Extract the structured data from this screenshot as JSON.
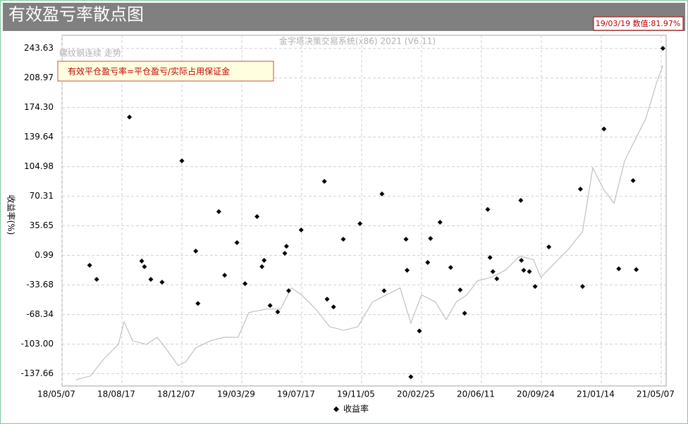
{
  "chart_data": {
    "type": "scatter",
    "title": "有效盈亏率散点图",
    "status_text": "19/03/19 数值:81.97%",
    "subtitle": "金字塔决策交易系统(x86) 2021 (V6.11)",
    "annotation": "有效平仓盈亏率=平仓盈亏/实际占用保证金",
    "ylabel": "收益率(%)",
    "grid": true,
    "xlim": [
      "18/05/07",
      "21/05/16"
    ],
    "xticks": [
      "18/05/07",
      "18/08/17",
      "18/12/07",
      "19/03/29",
      "19/07/17",
      "19/11/05",
      "20/02/25",
      "20/06/11",
      "20/09/24",
      "21/01/14",
      "21/05/07"
    ],
    "ylim": [
      -152,
      259
    ],
    "yticks": [
      243.63,
      208.97,
      {
        "value": 174.3,
        "label": "174.30"
      },
      139.64,
      104.98,
      70.31,
      35.65,
      0.99,
      -33.68,
      -68.34,
      {
        "value": -103,
        "label": "-103.00"
      },
      -137.66
    ],
    "series": [
      {
        "name": "收益率",
        "type": "scatter",
        "color": "#000000",
        "x": [
          "18/06/23",
          "18/07/05",
          "18/08/31",
          "18/09/23",
          "18/09/28",
          "18/10/10",
          "18/10/31",
          "18/12/07",
          "19/01/02",
          "19/01/06",
          "19/02/14",
          "19/02/25",
          "19/03/20",
          "19/04/04",
          "19/04/26",
          "19/05/05",
          "19/05/09",
          "19/05/20",
          "19/06/03",
          "19/06/16",
          "19/06/19",
          "19/06/23",
          "19/07/16",
          "19/08/28",
          "19/09/02",
          "19/09/14",
          "19/10/02",
          "19/11/02",
          "19/12/13",
          "19/12/17",
          "20/01/27",
          "20/01/29",
          "20/02/05",
          "20/02/21",
          "20/03/07",
          "20/03/12",
          "20/03/29",
          "20/04/17",
          "20/05/04",
          "20/05/12",
          "20/06/22",
          "20/06/26",
          "20/07/01",
          "20/07/08",
          "20/08/19",
          "20/08/20",
          "20/08/24",
          "20/09/03",
          "20/09/13",
          "20/10/08",
          "20/12/06",
          "20/12/10",
          "21/01/19",
          "21/02/16",
          "21/03/15",
          "21/03/21",
          "21/05/10"
        ],
        "values": [
          -10.6,
          -27.1,
          163.1,
          -5.6,
          -12.2,
          -27.1,
          -30.4,
          111.8,
          6.0,
          -55.3,
          52.3,
          -22.2,
          15.9,
          -32.1,
          46.5,
          -12.2,
          -4.8,
          -57.7,
          -65.2,
          3.5,
          11.7,
          -40.4,
          30.8,
          87.8,
          -50.3,
          -59.4,
          20.0,
          38.2,
          73.0,
          -40.4,
          20.0,
          -16.4,
          -141.3,
          -87.5,
          -7.3,
          20.8,
          39.9,
          -13.1,
          -39.5,
          -66.8,
          54.8,
          -1.5,
          -18.0,
          -26.3,
          65.5,
          -4.8,
          -16.4,
          -18.0,
          -35.4,
          10.9,
          78.7,
          -35.4,
          149.1,
          -14.7,
          88.7,
          -15.6,
          243.63
        ]
      },
      {
        "name": "螺纹钢连续 走势",
        "type": "line",
        "color": "#c0c0c0",
        "x": [
          "18/05/31",
          "18/06/24",
          "18/07/18",
          "18/08/11",
          "18/08/21",
          "18/09/06",
          "18/10/02",
          "18/10/22",
          "18/11/11",
          "18/11/30",
          "18/12/14",
          "19/01/02",
          "19/01/29",
          "19/02/24",
          "19/03/22",
          "19/04/11",
          "19/05/13",
          "19/06/08",
          "19/06/28",
          "19/07/17",
          "19/08/12",
          "19/09/07",
          "19/10/03",
          "19/10/29",
          "19/11/25",
          "19/12/21",
          "20/01/16",
          "20/02/05",
          "20/02/25",
          "20/03/21",
          "20/04/09",
          "20/04/27",
          "20/05/16",
          "20/06/04",
          "20/06/28",
          "20/07/23",
          "20/08/17",
          "20/09/10",
          "20/09/23",
          "20/10/19",
          "20/11/14",
          "20/12/10",
          "20/12/29",
          "21/01/18",
          "21/02/07",
          "21/02/27",
          "21/03/19",
          "21/04/08",
          "21/04/28",
          "21/05/10"
        ],
        "values": [
          -144.6,
          -140.4,
          -119.7,
          -103.2,
          -76.8,
          -99.1,
          -103.2,
          -95.0,
          -111.5,
          -128.1,
          -123.9,
          -107.4,
          -99.1,
          -95.0,
          -95.0,
          -66.0,
          -61.9,
          -61.9,
          -37.1,
          -45.3,
          -61.9,
          -82.6,
          -86.7,
          -82.6,
          -53.6,
          -45.3,
          -37.1,
          -78.4,
          -45.3,
          -53.6,
          -74.3,
          -53.6,
          -45.3,
          -28.8,
          -24.7,
          -16.4,
          0.2,
          -4.0,
          -24.7,
          -8.1,
          8.4,
          29.1,
          103.6,
          78.8,
          62.2,
          111.8,
          136.6,
          161.5,
          202.8,
          223.5
        ]
      }
    ]
  }
}
